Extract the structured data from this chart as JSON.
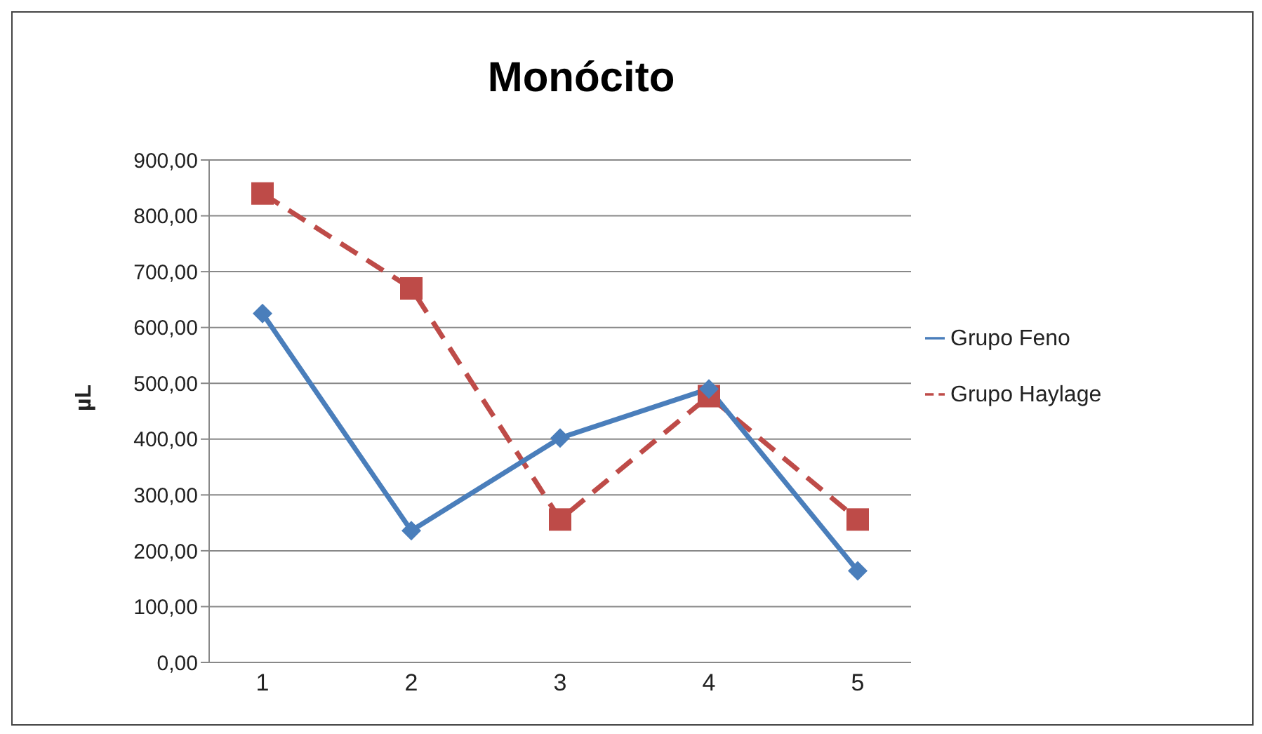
{
  "chart_data": {
    "type": "line",
    "title": "Monócito",
    "ylabel": "µL",
    "categories": [
      "1",
      "2",
      "3",
      "4",
      "5"
    ],
    "series": [
      {
        "name": "Grupo Feno",
        "color": "#4a7ebb",
        "values": [
          625,
          236,
          402,
          490,
          164
        ],
        "marker": "diamond",
        "line_style": "solid"
      },
      {
        "name": "Grupo Haylage",
        "color": "#be4b48",
        "values": [
          840,
          670,
          256,
          477,
          256
        ],
        "marker": "square",
        "line_style": "dashed"
      }
    ],
    "ylim": [
      0,
      900
    ],
    "yticks": [
      {
        "value": 0,
        "label": "0,00"
      },
      {
        "value": 100,
        "label": "100,00"
      },
      {
        "value": 200,
        "label": "200,00"
      },
      {
        "value": 300,
        "label": "300,00"
      },
      {
        "value": 400,
        "label": "400,00"
      },
      {
        "value": 500,
        "label": "500,00"
      },
      {
        "value": 600,
        "label": "600,00"
      },
      {
        "value": 700,
        "label": "700,00"
      },
      {
        "value": 800,
        "label": "800,00"
      },
      {
        "value": 900,
        "label": "900,00"
      }
    ],
    "grid": "y",
    "legend": "right"
  }
}
